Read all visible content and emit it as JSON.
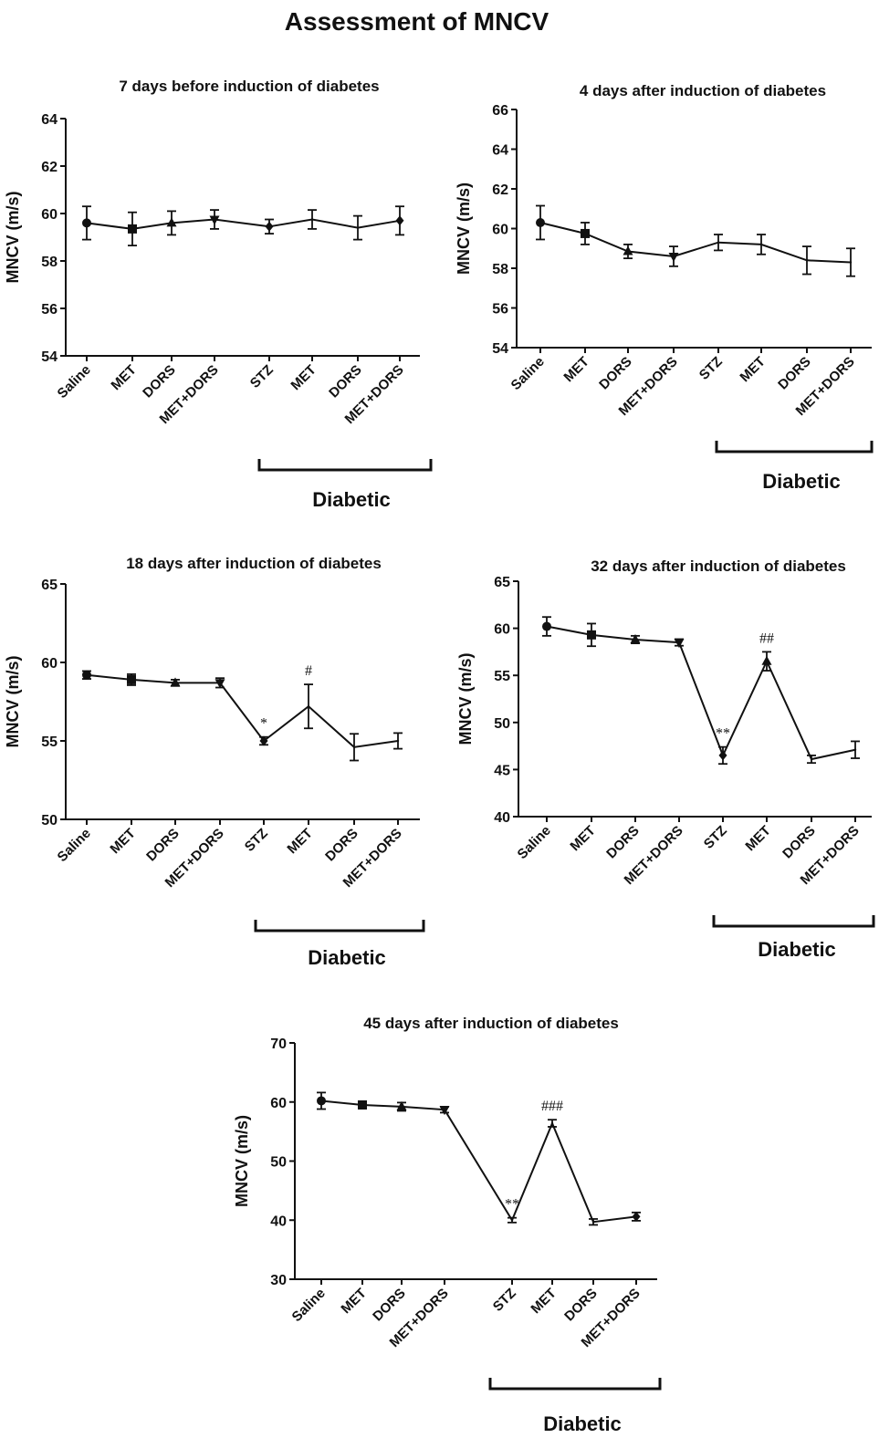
{
  "page_title": "Assessment of MNCV",
  "chart_data": [
    {
      "type": "line",
      "title": "7 days before induction of diabetes",
      "ylabel": "MNCV (m/s)",
      "ylim": [
        54,
        64
      ],
      "yticks": [
        54,
        56,
        58,
        60,
        62,
        64
      ],
      "categories": [
        "Saline",
        "MET",
        "DORS",
        "MET+DORS",
        "STZ",
        "MET",
        "DORS",
        "MET+DORS"
      ],
      "values": [
        59.6,
        59.35,
        59.6,
        59.75,
        59.45,
        59.75,
        59.4,
        59.7
      ],
      "errors": [
        0.7,
        0.7,
        0.5,
        0.4,
        0.3,
        0.4,
        0.5,
        0.6
      ],
      "markers": [
        "circle",
        "square",
        "triangle-up",
        "triangle-down",
        "diamond",
        "none",
        "none",
        "diamond"
      ],
      "group_label": "Diabetic",
      "annotations": []
    },
    {
      "type": "line",
      "title": "4 days after induction of diabetes",
      "ylabel": "MNCV (m/s)",
      "ylim": [
        54,
        66
      ],
      "yticks": [
        54,
        56,
        58,
        60,
        62,
        64,
        66
      ],
      "categories": [
        "Saline",
        "MET",
        "DORS",
        "MET+DORS",
        "STZ",
        "MET",
        "DORS",
        "MET+DORS"
      ],
      "values": [
        60.3,
        59.75,
        58.85,
        58.6,
        59.3,
        59.2,
        58.4,
        58.3
      ],
      "errors": [
        0.85,
        0.55,
        0.35,
        0.5,
        0.4,
        0.5,
        0.7,
        0.7
      ],
      "markers": [
        "circle",
        "square",
        "triangle-up",
        "triangle-down",
        "none",
        "none",
        "none",
        "none"
      ],
      "group_label": "Diabetic",
      "annotations": []
    },
    {
      "type": "line",
      "title": "18 days after induction of diabetes",
      "ylabel": "MNCV (m/s)",
      "ylim": [
        50,
        65
      ],
      "yticks": [
        50,
        55,
        60,
        65
      ],
      "categories": [
        "Saline",
        "MET",
        "DORS",
        "MET+DORS",
        "STZ",
        "MET",
        "DORS",
        "MET+DORS"
      ],
      "values": [
        59.2,
        58.9,
        58.7,
        58.7,
        55.0,
        57.2,
        54.6,
        55.0
      ],
      "errors": [
        0.25,
        0.35,
        0.2,
        0.3,
        0.25,
        1.4,
        0.85,
        0.5
      ],
      "markers": [
        "circle",
        "square",
        "triangle-up",
        "triangle-down",
        "diamond",
        "none",
        "none",
        "none"
      ],
      "group_label": "Diabetic",
      "annotations": [
        {
          "index": 4,
          "text": "*"
        },
        {
          "index": 5,
          "text": "#"
        }
      ]
    },
    {
      "type": "line",
      "title": "32 days after induction of diabetes",
      "ylabel": "MNCV (m/s)",
      "ylim": [
        40,
        65
      ],
      "yticks": [
        40,
        45,
        50,
        55,
        60,
        65
      ],
      "categories": [
        "Saline",
        "MET",
        "DORS",
        "MET+DORS",
        "STZ",
        "MET",
        "DORS",
        "MET+DORS"
      ],
      "values": [
        60.2,
        59.3,
        58.8,
        58.5,
        46.5,
        56.5,
        46.1,
        47.1
      ],
      "errors": [
        1.0,
        1.2,
        0.4,
        0.35,
        0.9,
        1.0,
        0.4,
        0.9
      ],
      "markers": [
        "circle",
        "square",
        "triangle-up",
        "triangle-down",
        "diamond",
        "triangle-up",
        "none",
        "none"
      ],
      "group_label": "Diabetic",
      "annotations": [
        {
          "index": 4,
          "text": "**"
        },
        {
          "index": 5,
          "text": "##"
        }
      ]
    },
    {
      "type": "line",
      "title": "45 days after induction of diabetes",
      "ylabel": "MNCV (m/s)",
      "ylim": [
        30,
        70
      ],
      "yticks": [
        30,
        40,
        50,
        60,
        70
      ],
      "categories": [
        "Saline",
        "MET",
        "DORS",
        "MET+DORS",
        "STZ",
        "MET",
        "DORS",
        "MET+DORS"
      ],
      "values": [
        60.2,
        59.5,
        59.2,
        58.7,
        40.0,
        56.4,
        39.7,
        40.6
      ],
      "errors": [
        1.4,
        0.5,
        0.7,
        0.5,
        0.4,
        0.6,
        0.5,
        0.7
      ],
      "markers": [
        "circle",
        "square",
        "triangle-up",
        "triangle-down",
        "none",
        "none",
        "none",
        "diamond"
      ],
      "group_label": "Diabetic",
      "annotations": [
        {
          "index": 4,
          "text": "**"
        },
        {
          "index": 5,
          "text": "###"
        }
      ]
    }
  ]
}
